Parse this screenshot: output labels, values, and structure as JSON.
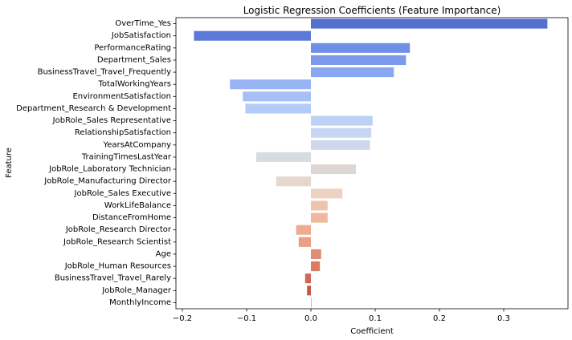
{
  "chart_data": {
    "type": "bar",
    "orientation": "horizontal",
    "title": "Logistic Regression Coefficients (Feature Importance)",
    "xlabel": "Coefficient",
    "ylabel": "Feature",
    "xlim": [
      -0.21,
      0.4
    ],
    "xticks": [
      -0.2,
      -0.1,
      0.0,
      0.1,
      0.2,
      0.3
    ],
    "xtick_labels": [
      "−0.2",
      "−0.1",
      "0.0",
      "0.1",
      "0.2",
      "0.3"
    ],
    "grid": false,
    "legend": "none",
    "categories": [
      "OverTime_Yes",
      "JobSatisfaction",
      "PerformanceRating",
      "Department_Sales",
      "BusinessTravel_Travel_Frequently",
      "TotalWorkingYears",
      "EnvironmentSatisfaction",
      "Department_Research & Development",
      "JobRole_Sales Representative",
      "RelationshipSatisfaction",
      "YearsAtCompany",
      "TrainingTimesLastYear",
      "JobRole_Laboratory Technician",
      "JobRole_Manufacturing Director",
      "JobRole_Sales Executive",
      "WorkLifeBalance",
      "DistanceFromHome",
      "JobRole_Research Director",
      "JobRole_Research Scientist",
      "Age",
      "JobRole_Human Resources",
      "BusinessTravel_Travel_Rarely",
      "JobRole_Manager",
      "MonthlyIncome"
    ],
    "values": [
      0.368,
      -0.182,
      0.154,
      0.148,
      0.129,
      -0.126,
      -0.106,
      -0.102,
      0.096,
      0.094,
      0.092,
      -0.085,
      0.07,
      -0.054,
      0.049,
      0.026,
      0.026,
      -0.023,
      -0.019,
      0.016,
      0.014,
      -0.009,
      -0.006,
      0.0002
    ],
    "colors": [
      "#5470cf",
      "#5b7ad8",
      "#7090e7",
      "#7b99ed",
      "#88a6f2",
      "#98b4f6",
      "#a6c0f7",
      "#b2ccfa",
      "#bdd1f7",
      "#c6d5f1",
      "#cfd8ea",
      "#d7dce3",
      "#ddd6d2",
      "#e5d7cd",
      "#ecd2c0",
      "#efc4ae",
      "#f0b89f",
      "#eeab92",
      "#ea9e84",
      "#e18d74",
      "#d97b63",
      "#cf6953",
      "#c45748",
      "#b8453d"
    ]
  }
}
